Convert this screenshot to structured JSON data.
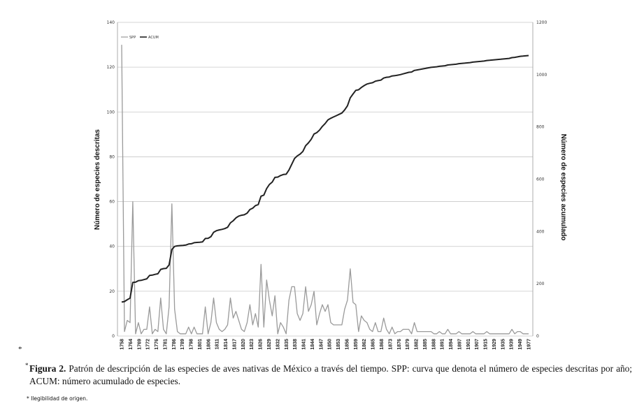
{
  "chart_data": {
    "type": "line",
    "title": "",
    "ylabel_left": "Número de especies descritas",
    "ylabel_right": "Número de especies acumulado",
    "ylim_left": [
      0,
      140
    ],
    "ylim_right": [
      0,
      1200
    ],
    "yticks_left": [
      0,
      20,
      40,
      60,
      80,
      100,
      120,
      140
    ],
    "yticks_right": [
      0,
      200,
      400,
      600,
      800,
      1000,
      1200
    ],
    "grid": true,
    "legend_position": "top-left",
    "xtick_labels": [
      "1758",
      "1764",
      "1769",
      "1772",
      "1776",
      "1781",
      "1786",
      "1789",
      "1798",
      "1801",
      "1806",
      "1811",
      "1814",
      "1817",
      "1820",
      "1823",
      "1826",
      "1829",
      "1832",
      "1835",
      "1838",
      "1841",
      "1844",
      "1847",
      "1850",
      "1853",
      "1856",
      "1859",
      "1862",
      "1865",
      "1868",
      "1873",
      "1876",
      "1879",
      "1882",
      "1885",
      "1888",
      "1891",
      "1894",
      "1897",
      "1901",
      "1907",
      "1915",
      "1929",
      "1935",
      "1939",
      "1949",
      "1977"
    ],
    "series": [
      {
        "name": "SPP",
        "axis": "left",
        "color": "#9a9a9a",
        "values": [
          130,
          2,
          7,
          6,
          60,
          1,
          6,
          1,
          3,
          3,
          13,
          1,
          3,
          2,
          17,
          3,
          1,
          13,
          59,
          12,
          2,
          1,
          1,
          1,
          4,
          1,
          4,
          1,
          1,
          1,
          13,
          1,
          6,
          17,
          6,
          3,
          2,
          3,
          5,
          17,
          8,
          11,
          7,
          3,
          2,
          6,
          14,
          5,
          10,
          4,
          32,
          4,
          25,
          16,
          9,
          18,
          1,
          6,
          4,
          1,
          16,
          22,
          22,
          10,
          7,
          10,
          22,
          11,
          14,
          20,
          5,
          10,
          14,
          11,
          14,
          6,
          5,
          5,
          5,
          5,
          12,
          16,
          30,
          15,
          14,
          2,
          9,
          7,
          6,
          3,
          2,
          6,
          2,
          2,
          8,
          3,
          1,
          4,
          1,
          2,
          2,
          3,
          3,
          3,
          1,
          6,
          2,
          2,
          2,
          2,
          2,
          2,
          1,
          1,
          2,
          1,
          1,
          3,
          1,
          1,
          1,
          2,
          1,
          1,
          1,
          1,
          2,
          1,
          1,
          1,
          1,
          2,
          1,
          1,
          1,
          1,
          1,
          1,
          1,
          1,
          3,
          1,
          2,
          2,
          1,
          1,
          1
        ]
      },
      {
        "name": "ACUM",
        "axis": "right",
        "color": "#222222",
        "values": [
          130,
          132,
          139,
          145,
          205,
          206,
          212,
          213,
          216,
          219,
          232,
          233,
          236,
          238,
          255,
          258,
          259,
          272,
          331,
          343,
          345,
          346,
          347,
          348,
          352,
          353,
          357,
          358,
          359,
          360,
          373,
          374,
          380,
          397,
          403,
          406,
          408,
          411,
          416,
          433,
          441,
          452,
          459,
          462,
          464,
          470,
          484,
          489,
          499,
          503,
          535,
          539,
          564,
          580,
          589,
          607,
          608,
          614,
          618,
          619,
          635,
          657,
          679,
          689,
          696,
          706,
          728,
          739,
          753,
          773,
          778,
          788,
          802,
          813,
          827,
          833,
          838,
          843,
          848,
          853,
          865,
          881,
          911,
          926,
          940,
          942,
          951,
          958,
          964,
          967,
          969,
          975,
          977,
          979,
          987,
          990,
          991,
          995,
          996,
          998,
          1000,
          1003,
          1006,
          1009,
          1010,
          1016,
          1018,
          1020,
          1022,
          1024,
          1026,
          1028,
          1029,
          1030,
          1032,
          1033,
          1034,
          1037,
          1038,
          1039,
          1040,
          1042,
          1043,
          1044,
          1045,
          1046,
          1048,
          1049,
          1050,
          1051,
          1052,
          1054,
          1055,
          1056,
          1057,
          1058,
          1059,
          1060,
          1061,
          1062,
          1065,
          1066,
          1068,
          1070,
          1071,
          1072,
          1073
        ]
      }
    ]
  },
  "caption": {
    "marker": "*",
    "label": "Figura 2.",
    "text": " Patrón de descripción de las especies de aves nativas de México a través del tiempo. SPP: curva que denota el número de especies descritas por año; ACUM: número acumulado de especies."
  },
  "stray_mark": "*",
  "footnote": "* Ilegibilidad de origen."
}
